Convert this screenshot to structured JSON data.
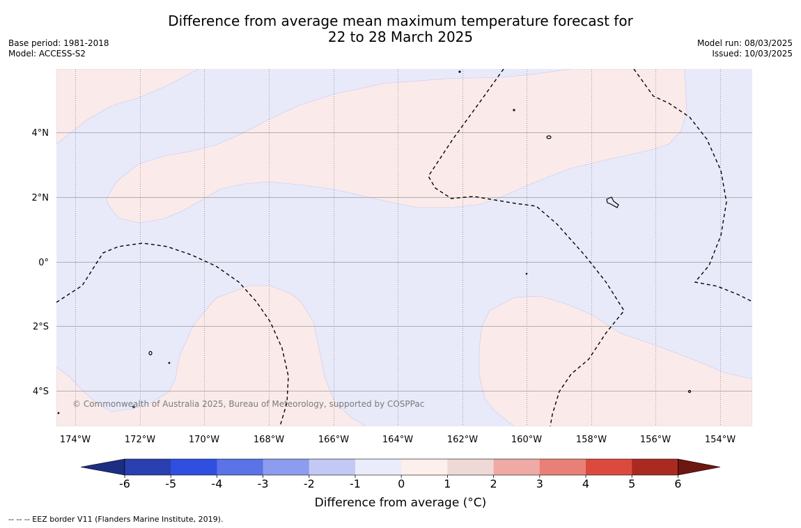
{
  "title_line1": "Difference from average mean maximum temperature forecast for",
  "title_line2": "22 to 28 March 2025",
  "base_period": "Base period: 1981-2018",
  "model": "Model: ACCESS-S2",
  "model_run": "Model run: 08/03/2025",
  "issued": "Issued: 10/03/2025",
  "copyright": "© Commonwealth of Australia 2025, Bureau of Meteorology, supported by COSPPac",
  "lat_labels": [
    "4°N",
    "2°N",
    "0°",
    "2°S",
    "4°S"
  ],
  "lon_labels": [
    "174°W",
    "172°W",
    "170°W",
    "168°W",
    "166°W",
    "164°W",
    "162°W",
    "160°W",
    "158°W",
    "156°W",
    "154°W"
  ],
  "colorbar": {
    "title": "Difference from average (°C)",
    "ticks": [
      "-6",
      "-5",
      "-4",
      "-3",
      "-2",
      "-1",
      "0",
      "1",
      "2",
      "3",
      "4",
      "5",
      "6"
    ],
    "colors": [
      "#1c2d82",
      "#2a3fb0",
      "#2f4fe0",
      "#5a73e6",
      "#8c9def",
      "#c3c9f5",
      "#eaecfb",
      "#fcefec",
      "#efd9d6",
      "#f0aaa6",
      "#e88078",
      "#dc4a3e",
      "#aa2a22",
      "#6e1612"
    ]
  },
  "eez_note": "-- -- -- EEZ border V11 (Flanders Marine Institute, 2019).",
  "map_colors": {
    "below": "#e8eafa",
    "above": "#fbeaea"
  }
}
